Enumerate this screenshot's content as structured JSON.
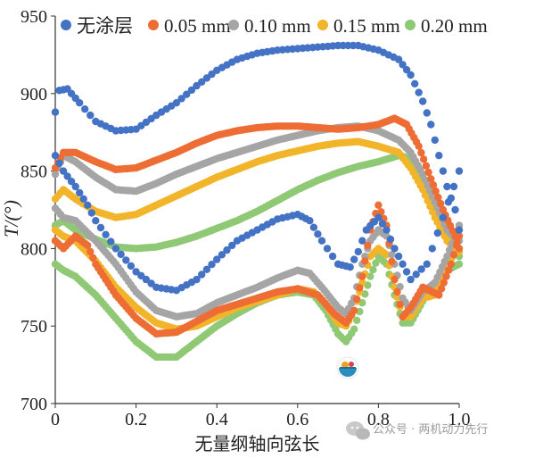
{
  "chart_data": {
    "type": "scatter",
    "title": "",
    "xlabel": "无量纲轴向弦长",
    "ylabel": "T/(°)",
    "xlim": [
      0,
      1.0
    ],
    "ylim": [
      700,
      950
    ],
    "xticks": [
      "0",
      "0.2",
      "0.4",
      "0.6",
      "0.8",
      "1.0"
    ],
    "yticks": [
      "700",
      "750",
      "800",
      "850",
      "900",
      "950"
    ],
    "legend_position": "top",
    "series": [
      {
        "name": "无涂层",
        "color": "#4472c4",
        "upper": [
          [
            0.0,
            888
          ],
          [
            0.01,
            902
          ],
          [
            0.03,
            903
          ],
          [
            0.06,
            894
          ],
          [
            0.1,
            882
          ],
          [
            0.15,
            876
          ],
          [
            0.2,
            877
          ],
          [
            0.25,
            886
          ],
          [
            0.3,
            894
          ],
          [
            0.35,
            905
          ],
          [
            0.4,
            915
          ],
          [
            0.45,
            922
          ],
          [
            0.5,
            926
          ],
          [
            0.55,
            928
          ],
          [
            0.6,
            929
          ],
          [
            0.65,
            930
          ],
          [
            0.7,
            931
          ],
          [
            0.75,
            931
          ],
          [
            0.8,
            928
          ],
          [
            0.85,
            922
          ],
          [
            0.88,
            912
          ],
          [
            0.91,
            895
          ],
          [
            0.93,
            880
          ],
          [
            0.95,
            860
          ],
          [
            0.97,
            840
          ],
          [
            0.99,
            825
          ],
          [
            1.0,
            812
          ]
        ],
        "lower": [
          [
            0.0,
            860
          ],
          [
            0.02,
            850
          ],
          [
            0.05,
            840
          ],
          [
            0.08,
            828
          ],
          [
            0.1,
            818
          ],
          [
            0.15,
            800
          ],
          [
            0.2,
            785
          ],
          [
            0.25,
            775
          ],
          [
            0.3,
            773
          ],
          [
            0.35,
            780
          ],
          [
            0.4,
            793
          ],
          [
            0.45,
            805
          ],
          [
            0.5,
            812
          ],
          [
            0.55,
            819
          ],
          [
            0.6,
            822
          ],
          [
            0.63,
            818
          ],
          [
            0.66,
            805
          ],
          [
            0.7,
            790
          ],
          [
            0.73,
            788
          ],
          [
            0.75,
            798
          ],
          [
            0.77,
            812
          ],
          [
            0.8,
            820
          ],
          [
            0.82,
            812
          ],
          [
            0.84,
            800
          ],
          [
            0.86,
            790
          ],
          [
            0.88,
            780
          ],
          [
            0.92,
            790
          ],
          [
            0.96,
            820
          ],
          [
            1.0,
            850
          ]
        ]
      },
      {
        "name": "0.05 mm",
        "color": "#ed6d35",
        "upper": [
          [
            0.0,
            852
          ],
          [
            0.02,
            862
          ],
          [
            0.05,
            862
          ],
          [
            0.1,
            856
          ],
          [
            0.15,
            851
          ],
          [
            0.2,
            852
          ],
          [
            0.25,
            857
          ],
          [
            0.3,
            862
          ],
          [
            0.35,
            868
          ],
          [
            0.4,
            873
          ],
          [
            0.45,
            876
          ],
          [
            0.5,
            878
          ],
          [
            0.55,
            879
          ],
          [
            0.6,
            879
          ],
          [
            0.65,
            878
          ],
          [
            0.7,
            877
          ],
          [
            0.75,
            878
          ],
          [
            0.8,
            880
          ],
          [
            0.84,
            884
          ],
          [
            0.87,
            880
          ],
          [
            0.9,
            866
          ],
          [
            0.93,
            845
          ],
          [
            0.96,
            825
          ],
          [
            0.99,
            808
          ],
          [
            1.0,
            800
          ]
        ],
        "lower": [
          [
            0.0,
            805
          ],
          [
            0.02,
            800
          ],
          [
            0.05,
            808
          ],
          [
            0.08,
            802
          ],
          [
            0.1,
            790
          ],
          [
            0.15,
            770
          ],
          [
            0.2,
            755
          ],
          [
            0.25,
            745
          ],
          [
            0.3,
            746
          ],
          [
            0.35,
            753
          ],
          [
            0.4,
            760
          ],
          [
            0.45,
            764
          ],
          [
            0.5,
            768
          ],
          [
            0.55,
            772
          ],
          [
            0.6,
            774
          ],
          [
            0.65,
            770
          ],
          [
            0.69,
            758
          ],
          [
            0.72,
            752
          ],
          [
            0.74,
            760
          ],
          [
            0.76,
            782
          ],
          [
            0.78,
            812
          ],
          [
            0.8,
            828
          ],
          [
            0.82,
            815
          ],
          [
            0.84,
            780
          ],
          [
            0.86,
            756
          ],
          [
            0.88,
            762
          ],
          [
            0.91,
            775
          ],
          [
            0.95,
            770
          ],
          [
            0.98,
            790
          ],
          [
            1.0,
            808
          ]
        ]
      },
      {
        "name": "0.10 mm",
        "color": "#a5a5a5",
        "upper": [
          [
            0.0,
            848
          ],
          [
            0.02,
            860
          ],
          [
            0.05,
            856
          ],
          [
            0.1,
            846
          ],
          [
            0.15,
            838
          ],
          [
            0.2,
            837
          ],
          [
            0.25,
            842
          ],
          [
            0.3,
            848
          ],
          [
            0.35,
            853
          ],
          [
            0.4,
            858
          ],
          [
            0.45,
            862
          ],
          [
            0.5,
            866
          ],
          [
            0.55,
            870
          ],
          [
            0.6,
            873
          ],
          [
            0.65,
            876
          ],
          [
            0.7,
            878
          ],
          [
            0.75,
            879
          ],
          [
            0.8,
            876
          ],
          [
            0.85,
            870
          ],
          [
            0.88,
            862
          ],
          [
            0.91,
            848
          ],
          [
            0.94,
            830
          ],
          [
            0.97,
            812
          ],
          [
            1.0,
            805
          ]
        ],
        "lower": [
          [
            0.0,
            826
          ],
          [
            0.02,
            820
          ],
          [
            0.05,
            818
          ],
          [
            0.1,
            805
          ],
          [
            0.15,
            790
          ],
          [
            0.2,
            772
          ],
          [
            0.25,
            760
          ],
          [
            0.3,
            756
          ],
          [
            0.35,
            758
          ],
          [
            0.4,
            765
          ],
          [
            0.45,
            770
          ],
          [
            0.5,
            775
          ],
          [
            0.55,
            781
          ],
          [
            0.6,
            786
          ],
          [
            0.63,
            784
          ],
          [
            0.66,
            775
          ],
          [
            0.7,
            762
          ],
          [
            0.72,
            758
          ],
          [
            0.74,
            768
          ],
          [
            0.76,
            790
          ],
          [
            0.78,
            805
          ],
          [
            0.8,
            812
          ],
          [
            0.82,
            808
          ],
          [
            0.84,
            790
          ],
          [
            0.86,
            768
          ],
          [
            0.88,
            760
          ],
          [
            0.91,
            772
          ],
          [
            0.94,
            778
          ],
          [
            0.97,
            795
          ],
          [
            1.0,
            815
          ]
        ]
      },
      {
        "name": "0.15 mm",
        "color": "#f2b52a",
        "upper": [
          [
            0.0,
            832
          ],
          [
            0.02,
            838
          ],
          [
            0.05,
            832
          ],
          [
            0.1,
            824
          ],
          [
            0.15,
            820
          ],
          [
            0.2,
            822
          ],
          [
            0.25,
            828
          ],
          [
            0.3,
            834
          ],
          [
            0.35,
            840
          ],
          [
            0.4,
            846
          ],
          [
            0.45,
            851
          ],
          [
            0.5,
            856
          ],
          [
            0.55,
            860
          ],
          [
            0.6,
            863
          ],
          [
            0.65,
            866
          ],
          [
            0.7,
            868
          ],
          [
            0.75,
            869
          ],
          [
            0.8,
            866
          ],
          [
            0.85,
            862
          ],
          [
            0.88,
            852
          ],
          [
            0.91,
            838
          ],
          [
            0.94,
            820
          ],
          [
            0.97,
            805
          ],
          [
            1.0,
            798
          ]
        ],
        "lower": [
          [
            0.0,
            812
          ],
          [
            0.02,
            808
          ],
          [
            0.05,
            805
          ],
          [
            0.1,
            792
          ],
          [
            0.15,
            775
          ],
          [
            0.2,
            762
          ],
          [
            0.25,
            752
          ],
          [
            0.3,
            748
          ],
          [
            0.35,
            750
          ],
          [
            0.4,
            756
          ],
          [
            0.45,
            762
          ],
          [
            0.5,
            766
          ],
          [
            0.55,
            770
          ],
          [
            0.6,
            774
          ],
          [
            0.64,
            772
          ],
          [
            0.67,
            764
          ],
          [
            0.7,
            752
          ],
          [
            0.72,
            750
          ],
          [
            0.74,
            760
          ],
          [
            0.76,
            778
          ],
          [
            0.78,
            795
          ],
          [
            0.8,
            800
          ],
          [
            0.82,
            796
          ],
          [
            0.84,
            775
          ],
          [
            0.86,
            756
          ],
          [
            0.88,
            756
          ],
          [
            0.91,
            768
          ],
          [
            0.94,
            770
          ],
          [
            0.97,
            790
          ],
          [
            1.0,
            800
          ]
        ]
      },
      {
        "name": "0.20 mm",
        "color": "#8fc975",
        "upper": [
          [
            0.0,
            815
          ],
          [
            0.02,
            818
          ],
          [
            0.05,
            812
          ],
          [
            0.1,
            806
          ],
          [
            0.15,
            801
          ],
          [
            0.2,
            800
          ],
          [
            0.25,
            801
          ],
          [
            0.3,
            804
          ],
          [
            0.35,
            808
          ],
          [
            0.4,
            813
          ],
          [
            0.45,
            818
          ],
          [
            0.5,
            824
          ],
          [
            0.55,
            831
          ],
          [
            0.6,
            838
          ],
          [
            0.65,
            844
          ],
          [
            0.7,
            849
          ],
          [
            0.75,
            853
          ],
          [
            0.8,
            856
          ],
          [
            0.85,
            860
          ],
          [
            0.88,
            858
          ],
          [
            0.91,
            845
          ],
          [
            0.94,
            825
          ],
          [
            0.97,
            808
          ],
          [
            1.0,
            795
          ]
        ],
        "lower": [
          [
            0.0,
            790
          ],
          [
            0.02,
            786
          ],
          [
            0.05,
            782
          ],
          [
            0.1,
            770
          ],
          [
            0.15,
            755
          ],
          [
            0.2,
            740
          ],
          [
            0.25,
            730
          ],
          [
            0.3,
            730
          ],
          [
            0.35,
            740
          ],
          [
            0.4,
            750
          ],
          [
            0.45,
            758
          ],
          [
            0.5,
            765
          ],
          [
            0.55,
            770
          ],
          [
            0.6,
            772
          ],
          [
            0.64,
            770
          ],
          [
            0.67,
            760
          ],
          [
            0.7,
            745
          ],
          [
            0.72,
            740
          ],
          [
            0.74,
            748
          ],
          [
            0.76,
            765
          ],
          [
            0.78,
            782
          ],
          [
            0.8,
            795
          ],
          [
            0.82,
            790
          ],
          [
            0.84,
            770
          ],
          [
            0.86,
            752
          ],
          [
            0.88,
            752
          ],
          [
            0.91,
            766
          ],
          [
            0.94,
            778
          ],
          [
            0.97,
            786
          ],
          [
            1.0,
            790
          ]
        ]
      }
    ]
  },
  "watermark": {
    "text": "公众号 · 两机动力先行"
  }
}
